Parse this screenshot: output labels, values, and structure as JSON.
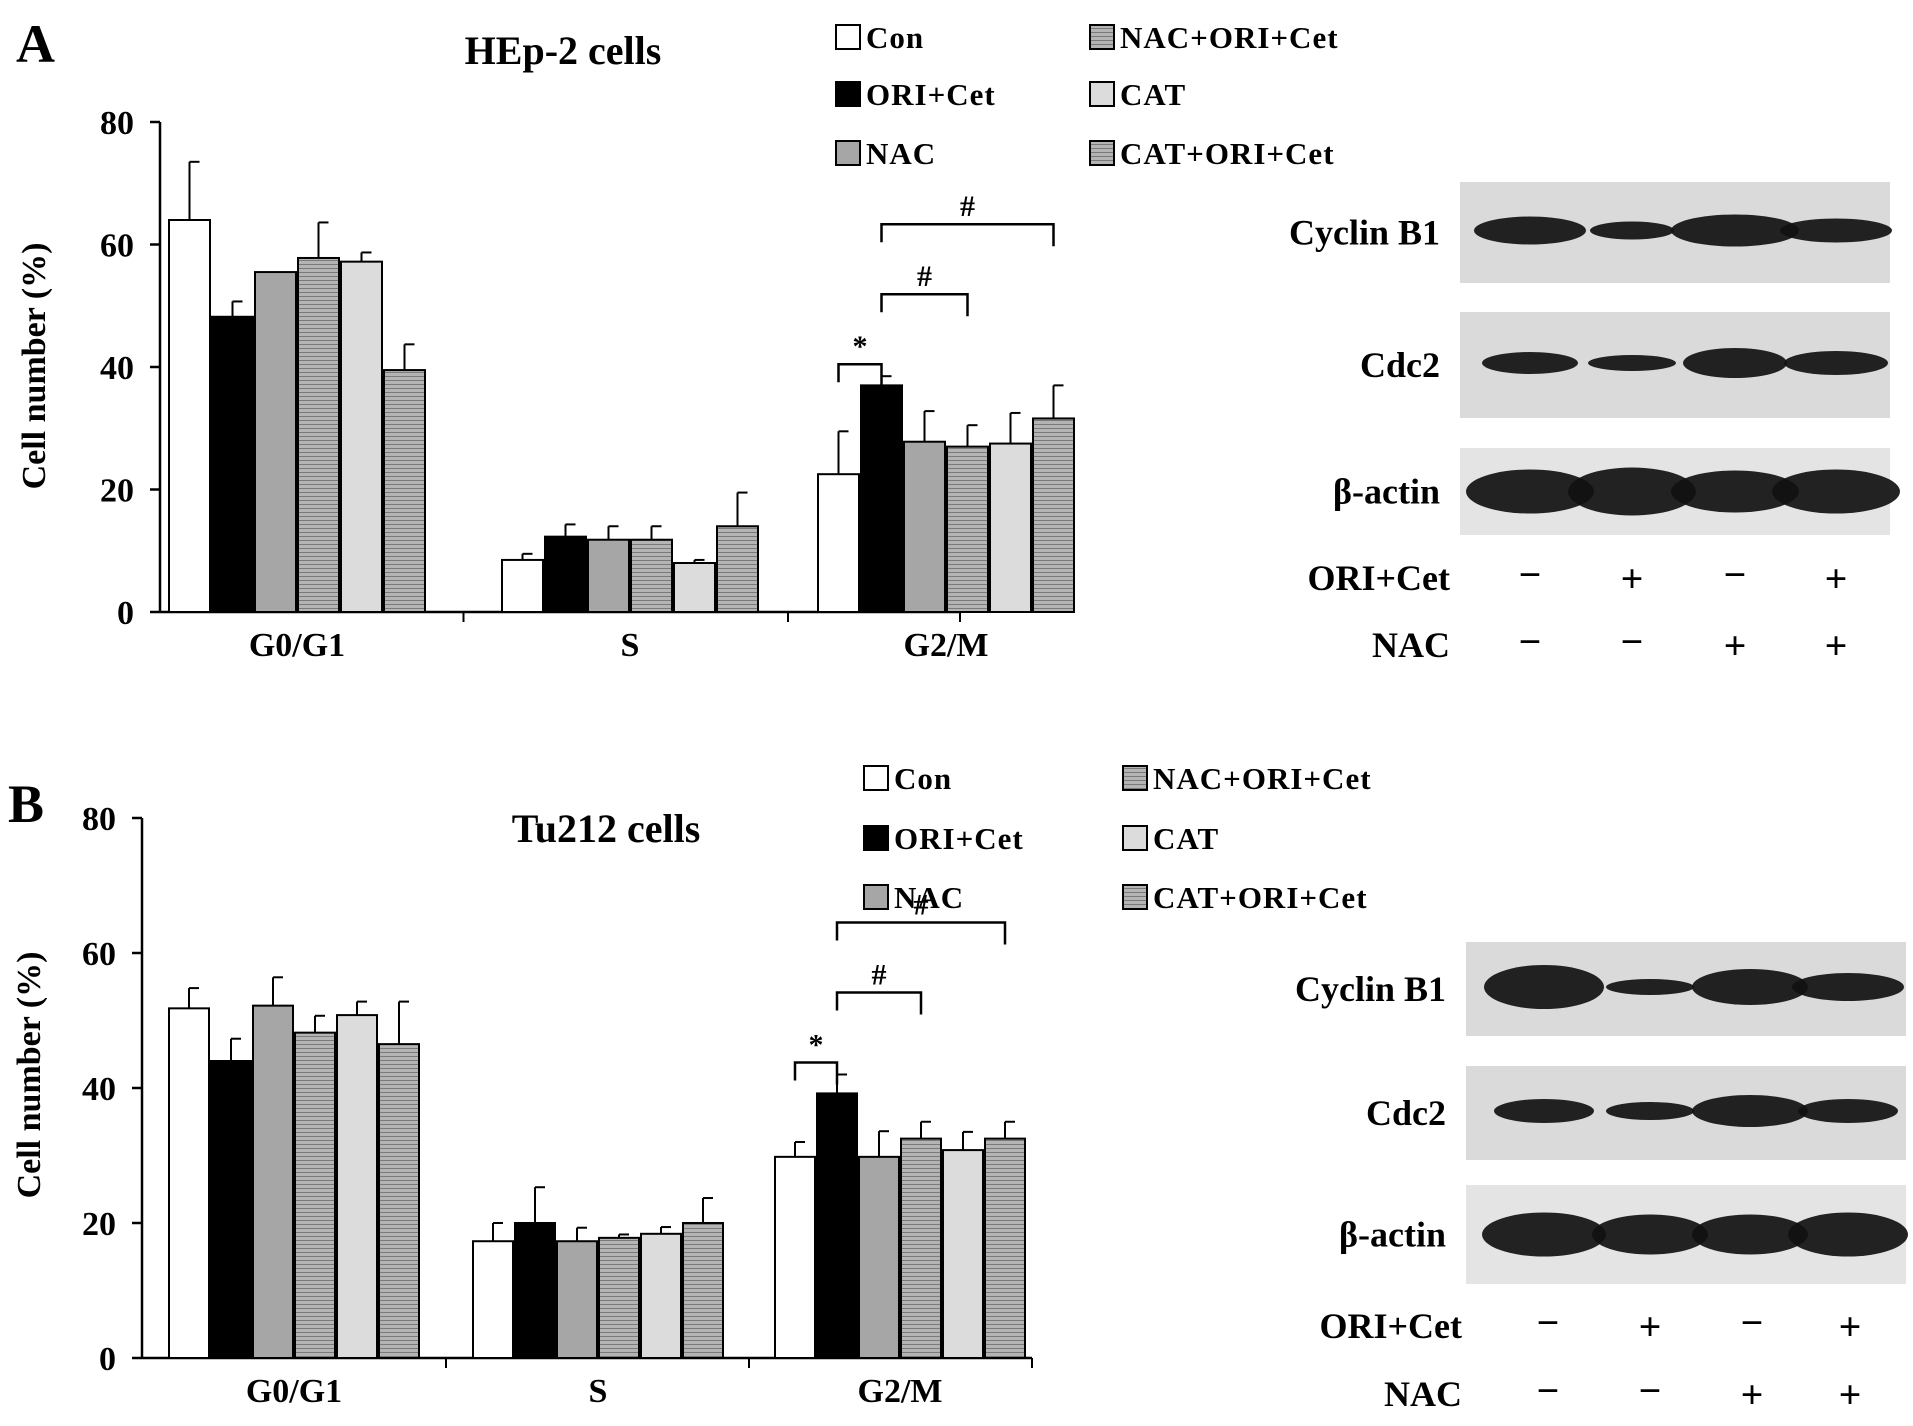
{
  "colors": {
    "Con": "#ffffff",
    "ORI+Cet": "#000000",
    "NAC": "#a6a6a6",
    "NAC+ORI+Cet": "#a6a6a6",
    "CAT": "#dcdcdc",
    "CAT+ORI+Cet": "#a6a6a6"
  },
  "chart_data": [
    {
      "type": "bar",
      "panel": "A",
      "title": "HEp-2 cells",
      "ylabel": "Cell number (%)",
      "xlabel": "",
      "ylim": [
        0,
        80
      ],
      "yticks": [
        0,
        20,
        40,
        60,
        80
      ],
      "categories": [
        "G0/G1",
        "S",
        "G2/M"
      ],
      "legend_position": "top",
      "legend": [
        "Con",
        "ORI+Cet",
        "NAC",
        "NAC+ORI+Cet",
        "CAT",
        "CAT+ORI+Cet"
      ],
      "series": [
        {
          "name": "Con",
          "values": [
            64,
            8.5,
            22.5
          ],
          "errors": [
            9.5,
            1,
            7
          ]
        },
        {
          "name": "ORI+Cet",
          "values": [
            48.2,
            12.3,
            37
          ],
          "errors": [
            2.5,
            2,
            1.5
          ]
        },
        {
          "name": "NAC",
          "values": [
            55.5,
            11.8,
            27.8
          ],
          "errors": [
            0,
            2.2,
            5
          ]
        },
        {
          "name": "NAC+ORI+Cet",
          "values": [
            57.8,
            11.8,
            27
          ],
          "errors": [
            5.8,
            2.2,
            3.5
          ]
        },
        {
          "name": "CAT",
          "values": [
            57.2,
            8,
            27.5
          ],
          "errors": [
            1.5,
            0.5,
            5
          ]
        },
        {
          "name": "CAT+ORI+Cet",
          "values": [
            39.5,
            14,
            31.6
          ],
          "errors": [
            4.2,
            5.5,
            5.4
          ]
        }
      ],
      "annotations": [
        {
          "symbol": "*",
          "from_series": "Con",
          "to_series": "ORI+Cet",
          "category": "G2/M",
          "level": 1
        },
        {
          "symbol": "#",
          "from_series": "ORI+Cet",
          "to_series": "NAC+ORI+Cet",
          "category": "G2/M",
          "level": 2
        },
        {
          "symbol": "#",
          "from_series": "ORI+Cet",
          "to_series": "CAT+ORI+Cet",
          "category": "G2/M",
          "level": 3
        }
      ],
      "blot": {
        "proteins": [
          "Cyclin B1",
          "Cdc2",
          "β-actin"
        ],
        "conditions": [
          {
            "label": "ORI+Cet",
            "marks": [
              "−",
              "+",
              "−",
              "+"
            ]
          },
          {
            "label": "NAC",
            "marks": [
              "−",
              "−",
              "+",
              "+"
            ]
          }
        ]
      }
    },
    {
      "type": "bar",
      "panel": "B",
      "title": "Tu212 cells",
      "ylabel": "Cell number (%)",
      "xlabel": "",
      "ylim": [
        0,
        80
      ],
      "yticks": [
        0,
        20,
        40,
        60,
        80
      ],
      "categories": [
        "G0/G1",
        "S",
        "G2/M"
      ],
      "legend_position": "top",
      "legend": [
        "Con",
        "ORI+Cet",
        "NAC",
        "NAC+ORI+Cet",
        "CAT",
        "CAT+ORI+Cet"
      ],
      "series": [
        {
          "name": "Con",
          "values": [
            51.8,
            17.3,
            29.8
          ],
          "errors": [
            3,
            2.7,
            2.2
          ]
        },
        {
          "name": "ORI+Cet",
          "values": [
            44,
            20,
            39.2
          ],
          "errors": [
            3.3,
            5.3,
            2.8
          ]
        },
        {
          "name": "NAC",
          "values": [
            52.2,
            17.3,
            29.8
          ],
          "errors": [
            4.2,
            2,
            3.8
          ]
        },
        {
          "name": "NAC+ORI+Cet",
          "values": [
            48.2,
            17.8,
            32.5
          ],
          "errors": [
            2.5,
            0.5,
            2.5
          ]
        },
        {
          "name": "CAT",
          "values": [
            50.8,
            18.4,
            30.8
          ],
          "errors": [
            2,
            1,
            2.7
          ]
        },
        {
          "name": "CAT+ORI+Cet",
          "values": [
            46.5,
            20,
            32.5
          ],
          "errors": [
            6.3,
            3.7,
            2.5
          ]
        }
      ],
      "annotations": [
        {
          "symbol": "*",
          "from_series": "Con",
          "to_series": "ORI+Cet",
          "category": "G2/M",
          "level": 1
        },
        {
          "symbol": "#",
          "from_series": "ORI+Cet",
          "to_series": "NAC+ORI+Cet",
          "category": "G2/M",
          "level": 2
        },
        {
          "symbol": "#",
          "from_series": "ORI+Cet",
          "to_series": "CAT+ORI+Cet",
          "category": "G2/M",
          "level": 3
        }
      ],
      "blot": {
        "proteins": [
          "Cyclin B1",
          "Cdc2",
          "β-actin"
        ],
        "conditions": [
          {
            "label": "ORI+Cet",
            "marks": [
              "−",
              "+",
              "−",
              "+"
            ]
          },
          {
            "label": "NAC",
            "marks": [
              "−",
              "−",
              "+",
              "+"
            ]
          }
        ]
      }
    }
  ]
}
